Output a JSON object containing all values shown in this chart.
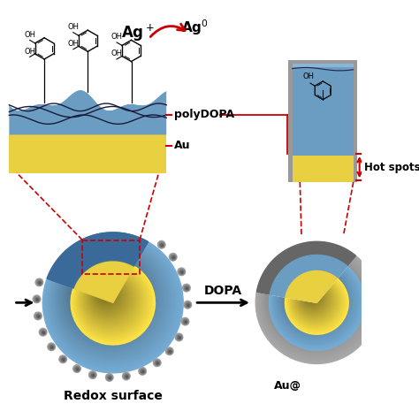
{
  "bg_color": "#ffffff",
  "blue_color": "#6B9DC2",
  "blue_light": "#8BB5D5",
  "blue_dark": "#3A6A9A",
  "yellow_color": "#E8D040",
  "yellow_light": "#F5E870",
  "yellow_dark": "#B8A020",
  "gray_color": "#999999",
  "gray_light": "#BBBBBB",
  "gray_dark": "#666666",
  "red_color": "#CC0000",
  "black_color": "#111111",
  "label_polyDOPA": "polyDOPA",
  "label_Au": "Au",
  "label_hot_spots": "Hot spots",
  "label_DOPA": "DOPA",
  "label_redox": "Redox surface",
  "label_Au_tag": "Au@"
}
